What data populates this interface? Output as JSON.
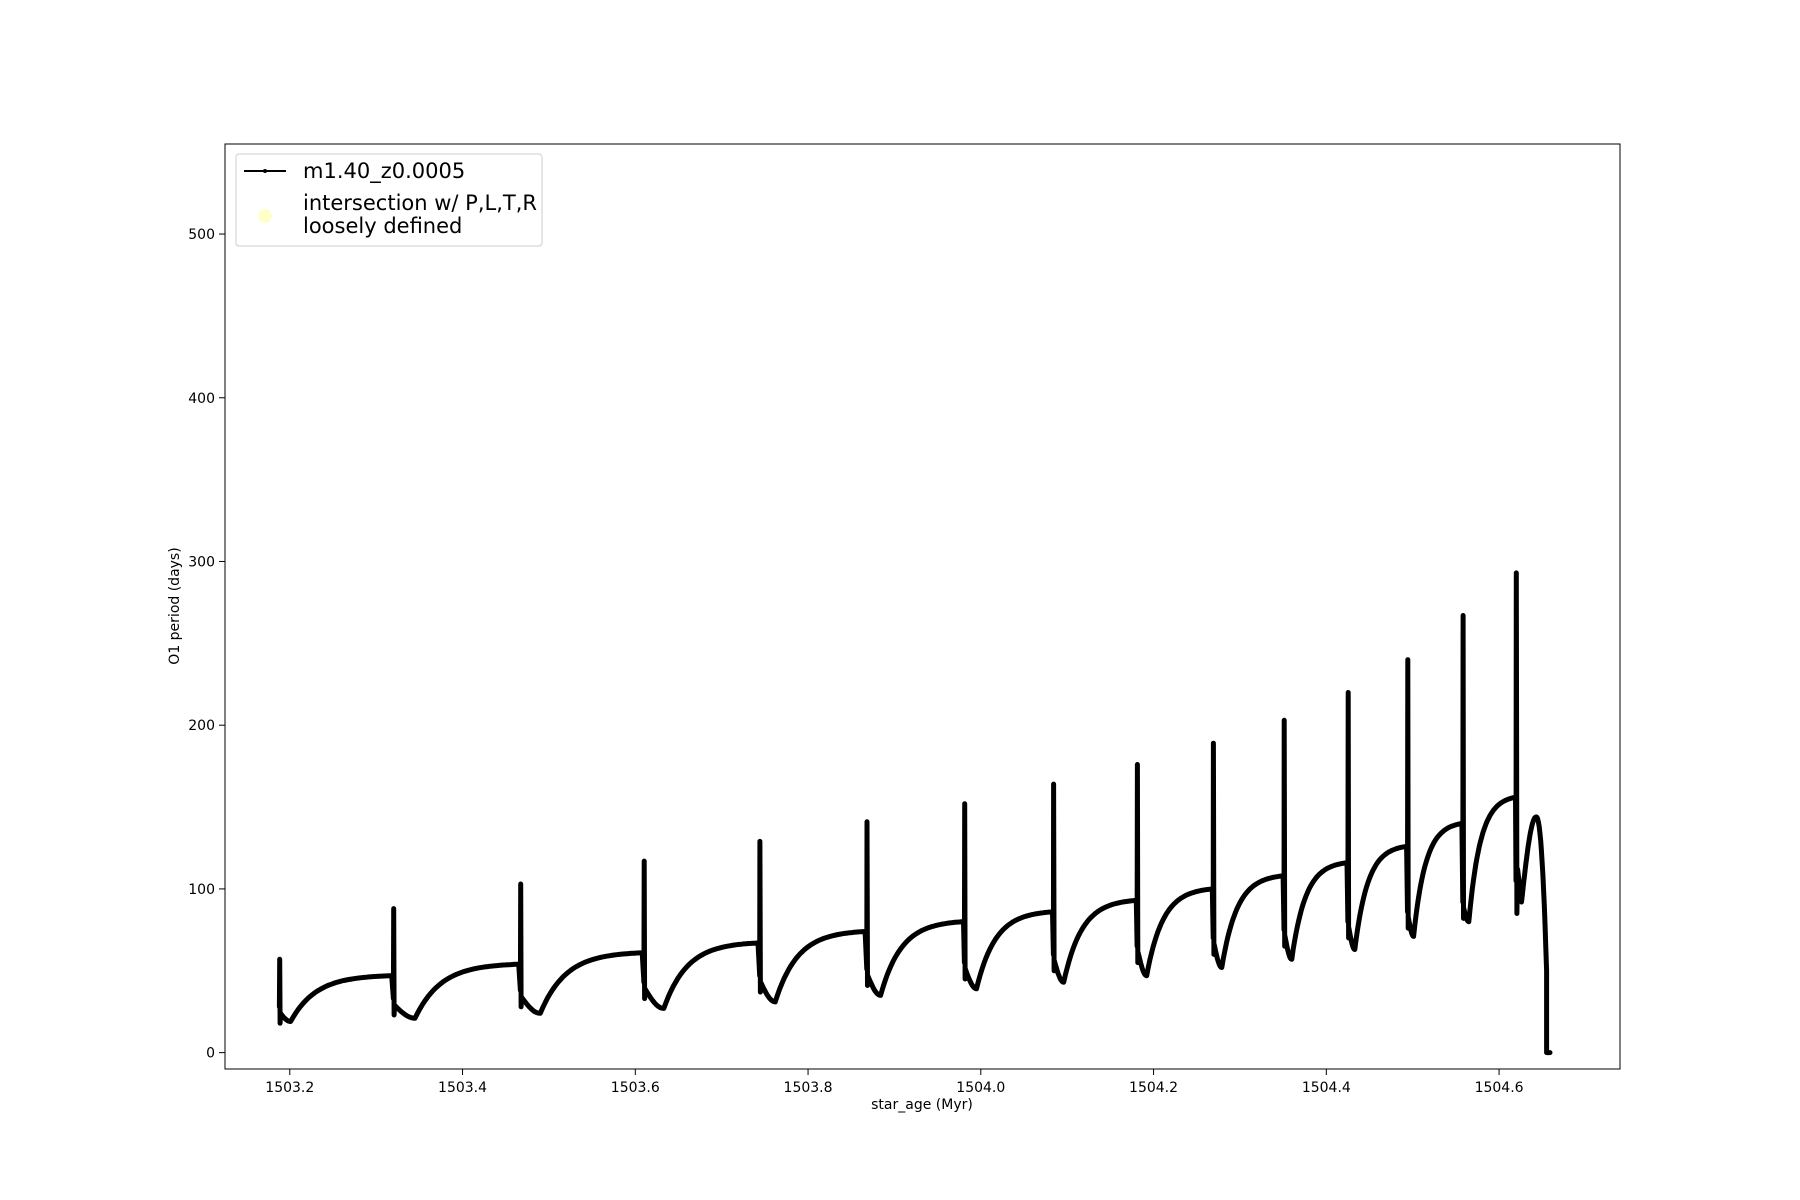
{
  "chart_data": {
    "type": "line",
    "xlabel": "star_age (Myr)",
    "ylabel": "O1 period (days)",
    "xlim": [
      1503.125,
      1504.74
    ],
    "ylim": [
      -10,
      555
    ],
    "x_ticks": [
      1503.2,
      1503.4,
      1503.6,
      1503.8,
      1504.0,
      1504.2,
      1504.4,
      1504.6
    ],
    "x_tick_labels": [
      "1503.2",
      "1503.4",
      "1503.6",
      "1503.8",
      "1504.0",
      "1504.2",
      "1504.4",
      "1504.6"
    ],
    "y_ticks": [
      0,
      100,
      200,
      300,
      400,
      500
    ],
    "y_tick_labels": [
      "0",
      "100",
      "200",
      "300",
      "400",
      "500"
    ],
    "grid": false,
    "legend": {
      "placement": "upper-left",
      "entries": [
        {
          "label": "m1.40_z0.0005",
          "marker": "line-with-dots",
          "color": "#000000"
        },
        {
          "label_lines": [
            "intersection w/ P,L,T,R",
            "loosely defined"
          ],
          "marker": "circle",
          "color": "#ffffcc"
        }
      ]
    },
    "series": [
      {
        "name": "m1.40_z0.0005",
        "color": "#000000",
        "cycles": [
          {
            "start": 1503.188,
            "spike": 57,
            "post_min": 18,
            "min_age": 1503.201,
            "min": 19,
            "end_age": 1503.318,
            "end": 47
          },
          {
            "start": 1503.32,
            "spike": 88,
            "post_min": 23,
            "min_age": 1503.345,
            "min": 21,
            "end_age": 1503.465,
            "end": 54
          },
          {
            "start": 1503.467,
            "spike": 103,
            "post_min": 28,
            "min_age": 1503.49,
            "min": 24,
            "end_age": 1503.608,
            "end": 61
          },
          {
            "start": 1503.61,
            "spike": 117,
            "post_min": 33,
            "min_age": 1503.633,
            "min": 27,
            "end_age": 1503.742,
            "end": 67
          },
          {
            "start": 1503.744,
            "spike": 129,
            "post_min": 37,
            "min_age": 1503.762,
            "min": 31,
            "end_age": 1503.866,
            "end": 74
          },
          {
            "start": 1503.868,
            "spike": 141,
            "post_min": 41,
            "min_age": 1503.884,
            "min": 35,
            "end_age": 1503.98,
            "end": 80
          },
          {
            "start": 1503.981,
            "spike": 152,
            "post_min": 45,
            "min_age": 1503.995,
            "min": 39,
            "end_age": 1504.083,
            "end": 86
          },
          {
            "start": 1504.084,
            "spike": 164,
            "post_min": 50,
            "min_age": 1504.096,
            "min": 43,
            "end_age": 1504.18,
            "end": 93
          },
          {
            "start": 1504.181,
            "spike": 176,
            "post_min": 55,
            "min_age": 1504.192,
            "min": 47,
            "end_age": 1504.268,
            "end": 100
          },
          {
            "start": 1504.269,
            "spike": 189,
            "post_min": 60,
            "min_age": 1504.279,
            "min": 52,
            "end_age": 1504.35,
            "end": 108
          },
          {
            "start": 1504.351,
            "spike": 203,
            "post_min": 65,
            "min_age": 1504.36,
            "min": 57,
            "end_age": 1504.424,
            "end": 116
          },
          {
            "start": 1504.425,
            "spike": 220,
            "post_min": 70,
            "min_age": 1504.433,
            "min": 63,
            "end_age": 1504.493,
            "end": 126
          },
          {
            "start": 1504.494,
            "spike": 240,
            "post_min": 76,
            "min_age": 1504.501,
            "min": 71,
            "end_age": 1504.557,
            "end": 140
          },
          {
            "start": 1504.558,
            "spike": 267,
            "post_min": 82,
            "min_age": 1504.565,
            "min": 80,
            "end_age": 1504.619,
            "end": 156
          }
        ],
        "final_phase": {
          "spike_age": 1504.62,
          "spike": 293,
          "drop": 85,
          "dip_age": 1504.626,
          "dip": 92,
          "peak_age": 1504.643,
          "peak": 144,
          "collapse_age": 1504.655,
          "collapse": 0,
          "end_age": 1504.659,
          "end": 0
        }
      }
    ]
  }
}
